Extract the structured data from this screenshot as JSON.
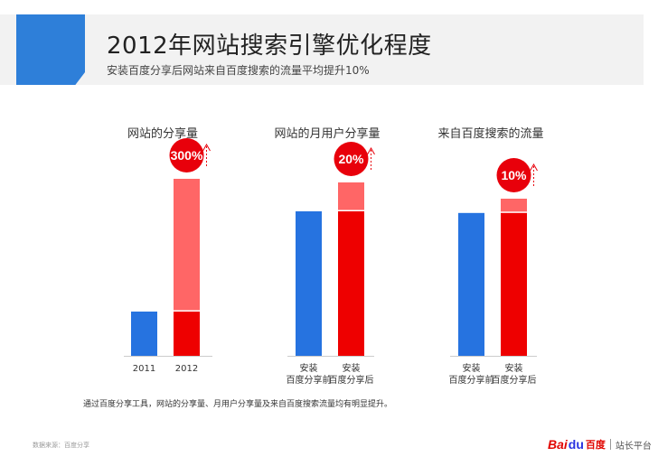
{
  "header": {
    "title": "2012年网站搜索引擎优化程度",
    "subtitle": "安装百度分享后网站来自百度搜索的流量平均提升10%"
  },
  "chart_data": [
    {
      "type": "bar",
      "title": "网站的分享量",
      "categories": [
        "2011",
        "2012"
      ],
      "values": [
        1,
        4
      ],
      "baseline_value": 1,
      "increase_label": "300%",
      "ylim": [
        0,
        4.4
      ]
    },
    {
      "type": "bar",
      "title": "网站的月用户分享量",
      "categories": [
        "安装\n百度分享前",
        "安装\n百度分享后"
      ],
      "values": [
        1,
        1.2
      ],
      "baseline_value": 1,
      "increase_label": "20%",
      "ylim": [
        0,
        1.5
      ]
    },
    {
      "type": "bar",
      "title": "来自百度搜索的流量",
      "categories": [
        "安装\n百度分享前",
        "安装\n百度分享后"
      ],
      "values": [
        1,
        1.1
      ],
      "baseline_value": 1,
      "increase_label": "10%",
      "ylim": [
        0,
        1.5
      ]
    }
  ],
  "footnote": "通过百度分享工具，网站的分享量、月用户分享量及来自百度搜索流量均有明显提升。",
  "source": "数据来源：百度分享",
  "logo": {
    "bai": "Bai",
    "du": "du",
    "cn": "百度",
    "platform": "站长平台"
  },
  "colors": {
    "accent_blue": "#2e7fd9",
    "bar_blue": "#2673e0",
    "bar_red": "#ee0000",
    "bar_pink": "#ff6666",
    "circle_red": "#e8000b"
  }
}
